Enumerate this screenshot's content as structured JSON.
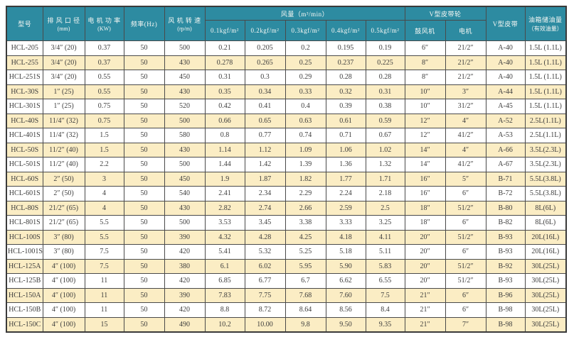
{
  "colors": {
    "header_bg": "#2d8ba1",
    "header_text": "#f8f8f4",
    "row_alt_bg": "#fbedc4",
    "row_bg": "#ffffff",
    "border": "#4a4a4a",
    "body_text": "#3c3c3c"
  },
  "table": {
    "header": {
      "model": "型号",
      "outlet_line1": "排 风 口 径",
      "outlet_line2": "(mm)",
      "power_line1": "电 机 功 率",
      "power_line2": "(KW)",
      "freq": "频率(Hz)",
      "speed_line1": "风 机 转 速",
      "speed_line2": "(rp/m)",
      "airflow_group": "风量（m³/min）",
      "pressures": [
        "0.1kgf/m²",
        "0.2kgf/m²",
        "0.3kgf/m²",
        "0.4kgf/m²",
        "0.5kgf/m²"
      ],
      "pulley_group": "V型皮带轮",
      "pulley_blower": "鼓风机",
      "pulley_motor": "电机",
      "vbelt": "V型皮带",
      "oil_line1": "油箱储油量",
      "oil_line2": "（有效油量）"
    },
    "column_keys": [
      "model",
      "outlet-diameter",
      "motor-power",
      "frequency",
      "fan-speed",
      "airflow-0p1",
      "airflow-0p2",
      "airflow-0p3",
      "airflow-0p4",
      "airflow-0p5",
      "pulley-blower",
      "pulley-motor",
      "v-belt",
      "oil-capacity"
    ],
    "rows": [
      [
        "HCL-205",
        "3/4″ (20)",
        "0.37",
        "50",
        "500",
        "0.21",
        "0.205",
        "0.2",
        "0.195",
        "0.19",
        "6″",
        "21/2″",
        "A-40",
        "1.5L (1.1L)"
      ],
      [
        "HCL-255",
        "3/4″ (20)",
        "0.37",
        "50",
        "430",
        "0.278",
        "0.265",
        "0.25",
        "0.237",
        "0.225",
        "8″",
        "21/2″",
        "A-40",
        "1.5L (1.1L)"
      ],
      [
        "HCL-251S",
        "3/4″ (20)",
        "0.55",
        "50",
        "450",
        "0.31",
        "0.3",
        "0.29",
        "0.28",
        "0.28",
        "8″",
        "21/2″",
        "A-40",
        "1.5L (1.1L)"
      ],
      [
        "HCL-30S",
        "1″ (25)",
        "0.55",
        "50",
        "430",
        "0.35",
        "0.34",
        "0.33",
        "0.32",
        "0.31",
        "10″",
        "3″",
        "A-44",
        "1.5L (1.1L)"
      ],
      [
        "HCL-301S",
        "1″ (25)",
        "0.75",
        "50",
        "520",
        "0.42",
        "0.41",
        "0.4",
        "0.39",
        "0.38",
        "10″",
        "31/2″",
        "A-45",
        "1.5L (1.1L)"
      ],
      [
        "HCL-40S",
        "11/4″ (32)",
        "0.75",
        "50",
        "500",
        "0.66",
        "0.65",
        "0.63",
        "0.61",
        "0.59",
        "12″",
        "4″",
        "A-52",
        "2.5L(1.1L)"
      ],
      [
        "HCL-401S",
        "11/4″ (32)",
        "1.5",
        "50",
        "580",
        "0.8",
        "0.77",
        "0.74",
        "0.71",
        "0.67",
        "12″",
        "41/2″",
        "A-53",
        "2.5L(1.1L)"
      ],
      [
        "HCL-50S",
        "11/2″ (40)",
        "1.5",
        "50",
        "430",
        "1.14",
        "1.12",
        "1.09",
        "1.06",
        "1.02",
        "14″",
        "4″",
        "A-66",
        "3.5L(2.3L)"
      ],
      [
        "HCL-501S",
        "11/2″ (40)",
        "2.2",
        "50",
        "500",
        "1.44",
        "1.42",
        "1.39",
        "1.36",
        "1.32",
        "14″",
        "41/2″",
        "A-67",
        "3.5L(2.3L)"
      ],
      [
        "HCL-60S",
        "2″ (50)",
        "3",
        "50",
        "450",
        "1.9",
        "1.87",
        "1.82",
        "1.77",
        "1.71",
        "16″",
        "5″",
        "B-71",
        "5.5L(3.8L)"
      ],
      [
        "HCL-601S",
        "2″ (50)",
        "4",
        "50",
        "540",
        "2.41",
        "2.34",
        "2.29",
        "2.24",
        "2.18",
        "16″",
        "6″",
        "B-72",
        "5.5L(3.8L)"
      ],
      [
        "HCL-80S",
        "21/2″ (65)",
        "4",
        "50",
        "430",
        "2.82",
        "2.74",
        "2.66",
        "2.59",
        "2.5",
        "18″",
        "51/2″",
        "B-80",
        "8L(6L)"
      ],
      [
        "HCL-801S",
        "21/2″ (65)",
        "5.5",
        "50",
        "500",
        "3.53",
        "3.45",
        "3.38",
        "3.33",
        "3.25",
        "18″",
        "6″",
        "B-82",
        "8L(6L)"
      ],
      [
        "HCL-100S",
        "3″ (80)",
        "5.5",
        "50",
        "390",
        "4.32",
        "4.28",
        "4.25",
        "4.18",
        "4.11",
        "20″",
        "51/2″",
        "B-93",
        "20L(16L)"
      ],
      [
        "HCL-1001S",
        "3″ (80)",
        "7.5",
        "50",
        "420",
        "5.41",
        "5.32",
        "5.25",
        "5.18",
        "5.11",
        "20″",
        "6″",
        "B-93",
        "20L(16L)"
      ],
      [
        "HCL-125A",
        "4″ (100)",
        "7.5",
        "50",
        "380",
        "6.1",
        "6.02",
        "5.95",
        "5.90",
        "5.83",
        "20″",
        "51/2″",
        "B-92",
        "30L(25L)"
      ],
      [
        "HCL-125B",
        "4″ (100)",
        "11",
        "50",
        "420",
        "6.85",
        "6.77",
        "6.7",
        "6.62",
        "6.55",
        "20″",
        "51/2″",
        "B-93",
        "30L(25L)"
      ],
      [
        "HCL-150A",
        "4″ (100)",
        "11",
        "50",
        "390",
        "7.83",
        "7.75",
        "7.68",
        "7.60",
        "7.5",
        "21″",
        "6″",
        "B-96",
        "30L(25L)"
      ],
      [
        "HCL-150B",
        "4″ (100)",
        "11",
        "50",
        "420",
        "8.8",
        "8.72",
        "8.64",
        "8.56",
        "8.4",
        "21″",
        "6″",
        "B-98",
        "30L(25L)"
      ],
      [
        "HCL-150C",
        "4″ (100)",
        "15",
        "50",
        "490",
        "10.2",
        "10.00",
        "9.8",
        "9.50",
        "9.35",
        "21″",
        "7″",
        "B-98",
        "30L(25L)"
      ]
    ]
  }
}
